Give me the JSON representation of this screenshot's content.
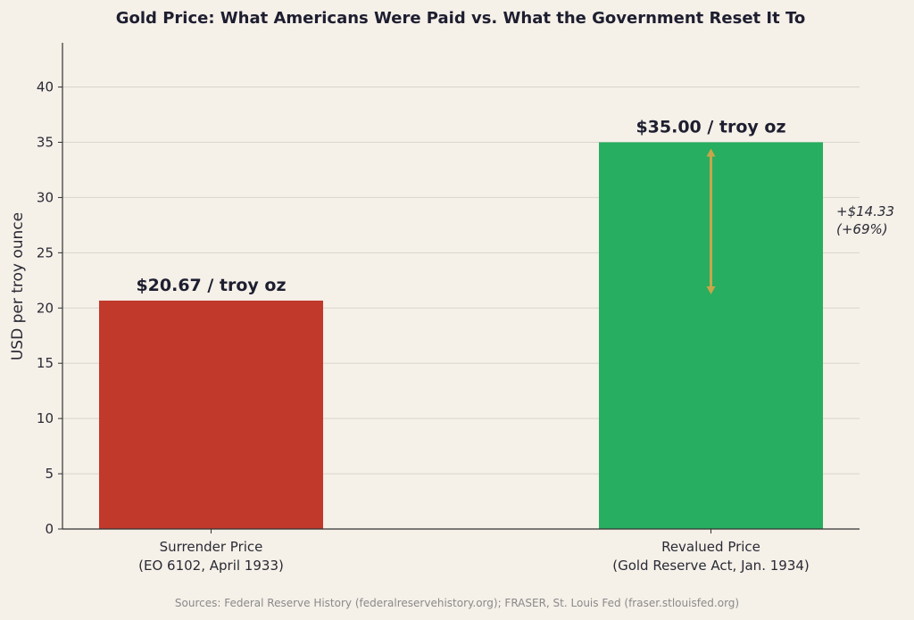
{
  "chart_data": {
    "type": "bar",
    "title": "Gold Price: What Americans Were Paid vs. What the Government Reset It To",
    "ylabel": "USD per troy ounce",
    "xlabel": "",
    "ylim": [
      0,
      44
    ],
    "yticks": [
      0,
      5,
      10,
      15,
      20,
      25,
      30,
      35,
      40
    ],
    "grid": true,
    "categories": [
      [
        "Surrender Price",
        "(EO 6102, April 1933)"
      ],
      [
        "Revalued Price",
        "(Gold Reserve Act, Jan. 1934)"
      ]
    ],
    "values": [
      20.67,
      35.0
    ],
    "colors": [
      "#c0392b",
      "#27ae60"
    ],
    "data_labels": [
      "$20.67 / troy oz",
      "$35.00 / troy oz"
    ],
    "annotation": {
      "lines": [
        "+$14.33",
        "(+69%)"
      ],
      "arrow_from": 20.67,
      "arrow_to": 35.0,
      "arrow_color": "#c9a54a"
    },
    "source": "Sources: Federal Reserve History (federalreservehistory.org); FRASER, St. Louis Fed (fraser.stlouisfed.org)"
  }
}
